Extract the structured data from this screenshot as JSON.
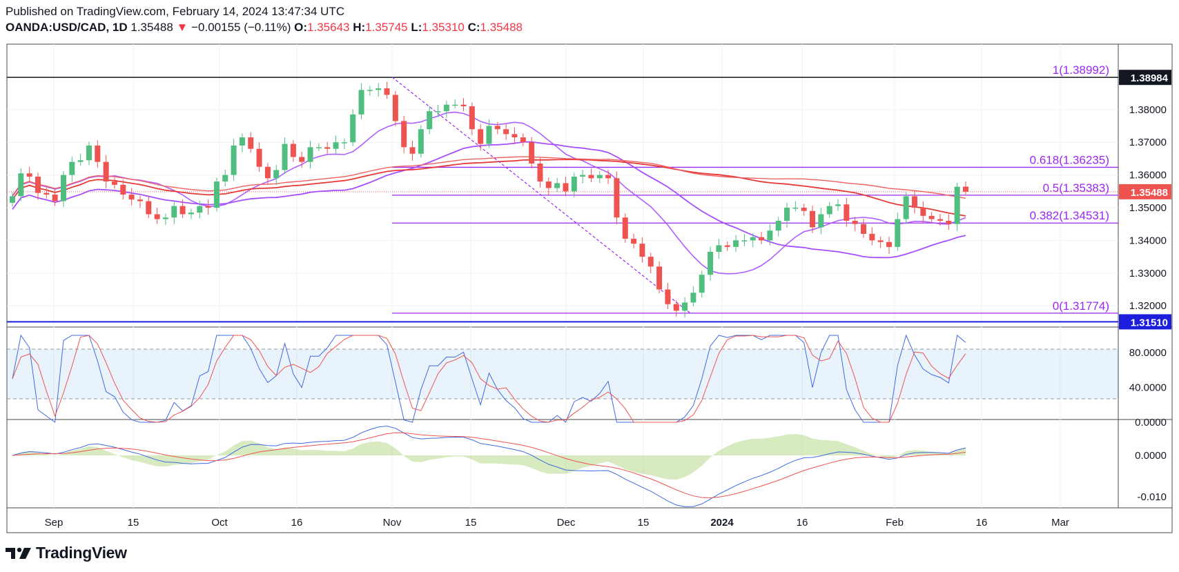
{
  "header": {
    "published": "Published on TradingView.com, February 14, 2024 13:47:34 UTC",
    "symbol": "OANDA:USD/CAD, 1D",
    "last": "1.35488",
    "change": "−0.00155 (−0.11%)",
    "o_label": "O:",
    "o": "1.35643",
    "h_label": "H:",
    "h": "1.35745",
    "l_label": "L:",
    "l": "1.35310",
    "c_label": "C:",
    "c": "1.35488"
  },
  "footer": {
    "brand": "TradingView"
  },
  "colors": {
    "up": "#26a69a",
    "upCandle": "#4fbe7f",
    "down": "#ef5350",
    "fib": "#9c27f0",
    "ma": "#a64dff",
    "blue": "#1d1ddc",
    "grid": "#eef0f3",
    "dark": "#131722"
  },
  "chart_data": {
    "type": "candlestick",
    "title": "OANDA:USD/CAD, 1D",
    "x_labels": [
      "Sep",
      "15",
      "Oct",
      "16",
      "Nov",
      "15",
      "Dec",
      "15",
      "2024",
      "16",
      "Feb",
      "16",
      "Mar"
    ],
    "price_ticks": [
      "1.38000",
      "1.37000",
      "1.36000",
      "1.35000",
      "1.34000",
      "1.33000",
      "1.32000"
    ],
    "price_range": [
      1.3135,
      1.4
    ],
    "price_badges": {
      "high_line": "1.38984",
      "last": "1.35488",
      "low_line": "1.31510"
    },
    "fibonacci": [
      {
        "level": "1",
        "price": 1.38992,
        "label": "1(1.38992)"
      },
      {
        "level": "0.618",
        "price": 1.36235,
        "label": "0.618(1.36235)"
      },
      {
        "level": "0.5",
        "price": 1.35383,
        "label": "0.5(1.35383)"
      },
      {
        "level": "0.382",
        "price": 1.34531,
        "label": "0.382(1.34531)"
      },
      {
        "level": "0",
        "price": 1.31774,
        "label": "0(1.31774)"
      }
    ],
    "closes": [
      1.3535,
      1.3605,
      1.3595,
      1.3545,
      1.354,
      1.352,
      1.36,
      1.364,
      1.3645,
      1.369,
      1.364,
      1.358,
      1.357,
      1.354,
      1.3525,
      1.352,
      1.348,
      1.3465,
      1.347,
      1.3505,
      1.348,
      1.3485,
      1.3505,
      1.35,
      1.358,
      1.36,
      1.369,
      1.3715,
      1.368,
      1.3625,
      1.359,
      1.3615,
      1.3695,
      1.3655,
      1.364,
      1.3685,
      1.3685,
      1.368,
      1.37,
      1.37,
      1.3785,
      1.386,
      1.386,
      1.3865,
      1.3845,
      1.3765,
      1.3685,
      1.3665,
      1.374,
      1.3795,
      1.3795,
      1.3815,
      1.3815,
      1.381,
      1.374,
      1.3695,
      1.375,
      1.374,
      1.3725,
      1.3715,
      1.37,
      1.3635,
      1.358,
      1.356,
      1.3575,
      1.355,
      1.3595,
      1.36,
      1.359,
      1.36,
      1.359,
      1.347,
      1.3405,
      1.339,
      1.335,
      1.332,
      1.325,
      1.3205,
      1.3185,
      1.321,
      1.324,
      1.3295,
      1.3365,
      1.3385,
      1.338,
      1.34,
      1.34,
      1.341,
      1.34,
      1.343,
      1.346,
      1.35,
      1.35,
      1.349,
      1.344,
      1.348,
      1.3505,
      1.351,
      1.346,
      1.345,
      1.342,
      1.34,
      1.3395,
      1.338,
      1.3465,
      1.3535,
      1.35,
      1.3475,
      1.3465,
      1.346,
      1.345,
      1.3564,
      1.35488
    ],
    "rsi_ticks": [
      "80.0000",
      "40.0000",
      "0.0000"
    ],
    "rsi_levels": [
      80,
      20
    ],
    "macd_ticks": [
      "0.0000",
      "-0.010"
    ],
    "macd_range": [
      -0.012,
      0.008
    ]
  }
}
